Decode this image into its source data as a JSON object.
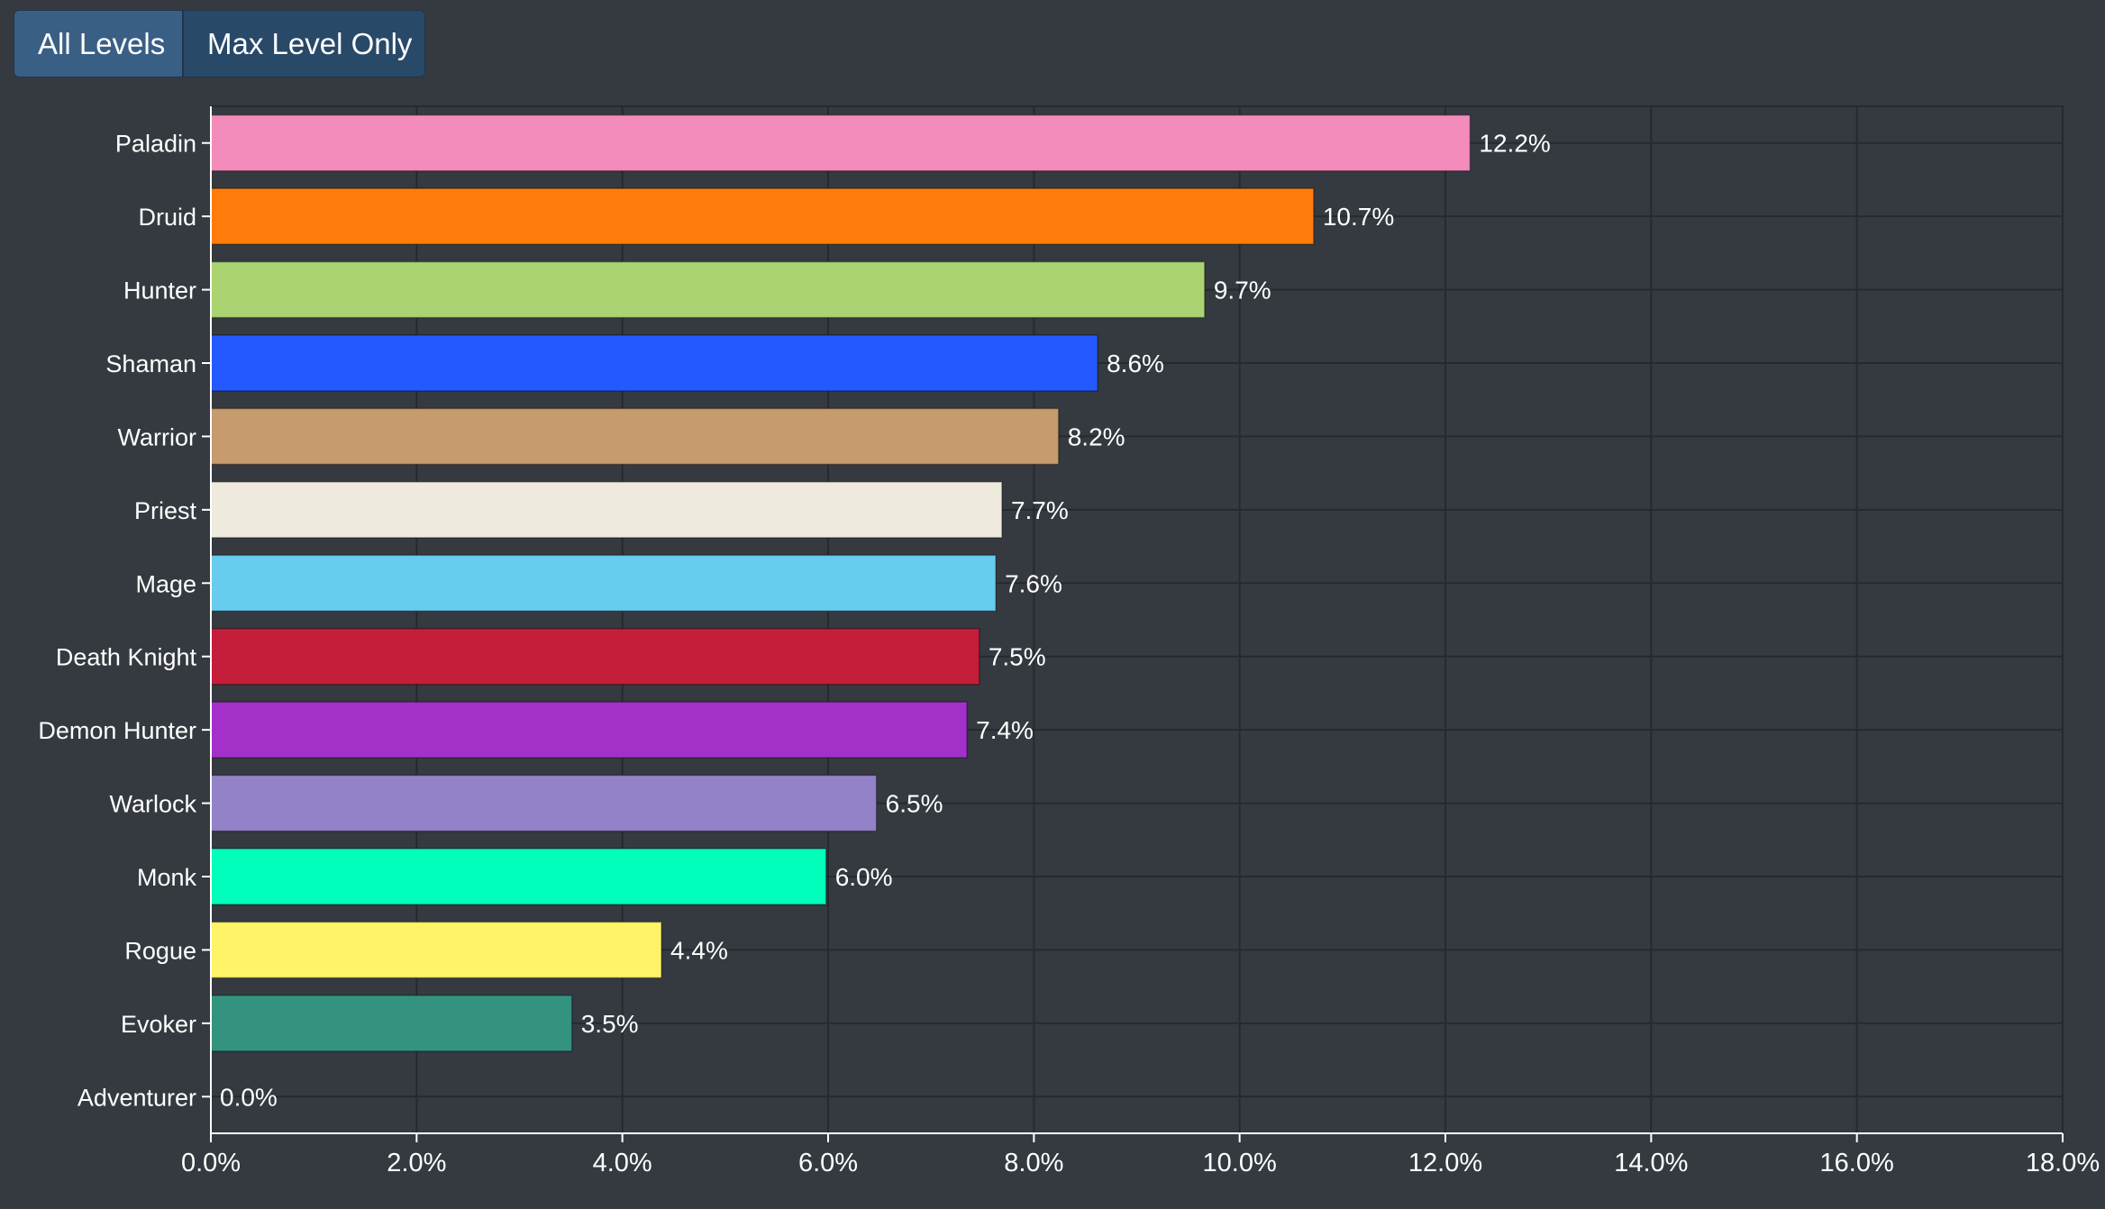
{
  "toggle": {
    "all_levels_label": "All Levels",
    "max_level_label": "Max Level Only",
    "active": "All Levels"
  },
  "colors": {
    "background": "#343a40",
    "grid": "#262a2f",
    "axis": "#ffffff",
    "text": "#ffffff",
    "button_active": "#3a5f85",
    "button_inactive": "#294968"
  },
  "chart_data": {
    "type": "bar",
    "orientation": "horizontal",
    "title": "",
    "xlabel": "",
    "ylabel": "",
    "xlim": [
      0,
      18
    ],
    "x_ticks": [
      "0.0%",
      "2.0%",
      "4.0%",
      "6.0%",
      "8.0%",
      "10.0%",
      "12.0%",
      "14.0%",
      "16.0%",
      "18.0%"
    ],
    "grid": true,
    "legend": "none",
    "categories": [
      "Paladin",
      "Druid",
      "Hunter",
      "Shaman",
      "Warrior",
      "Priest",
      "Mage",
      "Death Knight",
      "Demon Hunter",
      "Warlock",
      "Monk",
      "Rogue",
      "Evoker",
      "Adventurer"
    ],
    "values": [
      12.24,
      10.72,
      9.66,
      8.62,
      8.24,
      7.69,
      7.63,
      7.47,
      7.35,
      6.47,
      5.98,
      4.38,
      3.51,
      0.0
    ],
    "value_labels": [
      "12.2%",
      "10.7%",
      "9.7%",
      "8.6%",
      "8.2%",
      "7.7%",
      "7.6%",
      "7.5%",
      "7.4%",
      "6.5%",
      "6.0%",
      "4.4%",
      "3.5%",
      "0.0%"
    ],
    "bar_colors": [
      "#f38bbb",
      "#ff7c0a",
      "#aad372",
      "#2359ff",
      "#c69b6d",
      "#eeeadd",
      "#68ccef",
      "#c41e3b",
      "#a330c9",
      "#9482c9",
      "#00ffba",
      "#fff468",
      "#33937f",
      "#888888"
    ]
  }
}
